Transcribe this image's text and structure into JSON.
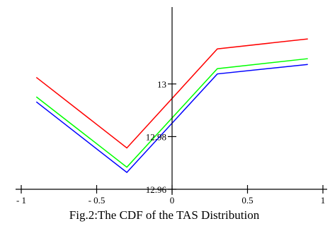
{
  "caption": "Fig.2:The CDF of the TAS Distribution",
  "chart_data": {
    "type": "line",
    "title": "",
    "xlabel": "",
    "ylabel": "",
    "xlim": [
      -1,
      1
    ],
    "ylim": [
      12.96,
      13.03
    ],
    "x_ticks": [
      {
        "value": -1,
        "label": "- 1"
      },
      {
        "value": -0.5,
        "label": "- 0.5"
      },
      {
        "value": 0,
        "label": "0"
      },
      {
        "value": 0.5,
        "label": "0.5"
      },
      {
        "value": 1,
        "label": "1"
      }
    ],
    "y_ticks": [
      {
        "value": 12.96,
        "label": "12.96"
      },
      {
        "value": 12.98,
        "label": "12.98"
      },
      {
        "value": 13,
        "label": "13"
      }
    ],
    "series": [
      {
        "color": "#ff0000",
        "x": [
          -0.9,
          -0.3,
          0.3,
          0.9
        ],
        "y": [
          13.0025,
          12.9757,
          13.0133,
          13.0171
        ]
      },
      {
        "color": "#00ff00",
        "x": [
          -0.9,
          -0.3,
          0.3,
          0.9
        ],
        "y": [
          12.9951,
          12.9684,
          13.0058,
          13.0096
        ]
      },
      {
        "color": "#0000ff",
        "x": [
          -0.9,
          -0.3,
          0.3,
          0.9
        ],
        "y": [
          12.9932,
          12.9664,
          13.0038,
          13.0074
        ]
      }
    ],
    "grid": false,
    "legend": "none"
  }
}
